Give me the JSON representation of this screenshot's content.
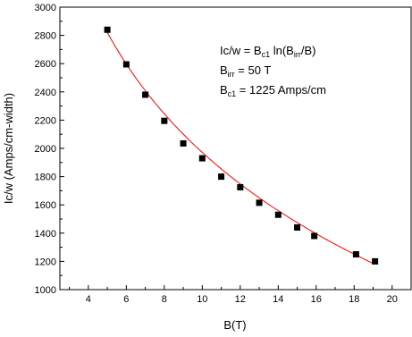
{
  "chart_data": {
    "type": "scatter",
    "xlabel": "B(T)",
    "ylabel": "Ic/w (Amps/cm-width)",
    "xlim": [
      2.5,
      21
    ],
    "ylim": [
      1000,
      3000
    ],
    "x_ticks": [
      4,
      6,
      8,
      10,
      12,
      14,
      16,
      18,
      20
    ],
    "y_ticks": [
      1000,
      1200,
      1400,
      1600,
      1800,
      2000,
      2200,
      2400,
      2600,
      2800,
      3000
    ],
    "x_tick_labels": [
      "4",
      "6",
      "8",
      "10",
      "12",
      "14",
      "16",
      "18",
      "20"
    ],
    "y_tick_labels": [
      "1000",
      "1200",
      "1400",
      "1600",
      "1800",
      "2000",
      "2200",
      "2400",
      "2600",
      "2800",
      "3000"
    ],
    "grid": false,
    "series": [
      {
        "type": "scatter",
        "marker": "square",
        "color": "#000000",
        "x": [
          5,
          6,
          7,
          8,
          9,
          10,
          11,
          12,
          13,
          14,
          15,
          15.9,
          18.1,
          19.1
        ],
        "y": [
          2840,
          2595,
          2380,
          2195,
          2035,
          1930,
          1800,
          1725,
          1615,
          1530,
          1440,
          1380,
          1250,
          1200
        ]
      },
      {
        "type": "line",
        "color": "#ff0000",
        "fit": {
          "B_c1": 1225,
          "B_irr": 50,
          "x_range": [
            5,
            19
          ]
        }
      }
    ],
    "annotation": {
      "line1": {
        "parts": [
          "Ic/w = B",
          "c1",
          " ln(B",
          "irr",
          "/B)"
        ]
      },
      "line2": {
        "parts": [
          "B",
          "irr",
          " = 50 T"
        ]
      },
      "line3": {
        "parts": [
          "B",
          "c1",
          " = 1225 Amps/cm"
        ]
      }
    }
  }
}
